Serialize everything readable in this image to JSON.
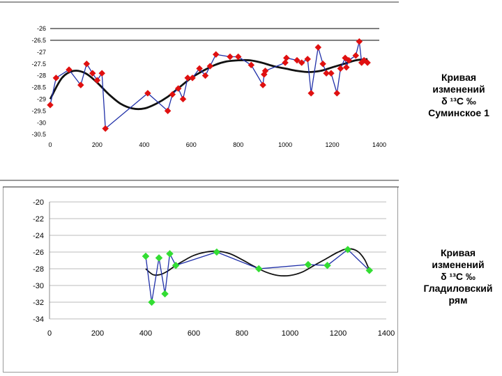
{
  "chart_data": [
    {
      "type": "line",
      "title": "",
      "caption_lines": [
        "Кривая",
        "изменений",
        "δ ¹³C ‰",
        "Суминское 1"
      ],
      "xlim": [
        0,
        1400
      ],
      "ylim": [
        -30.5,
        -26
      ],
      "xticks": [
        0,
        200,
        400,
        600,
        800,
        1000,
        1200,
        1400
      ],
      "xtick_labels": [
        "0",
        "200",
        "400",
        "600",
        "800",
        "1000",
        "1200",
        "1400"
      ],
      "yticks": [
        -26,
        -26.5,
        -27,
        -27.5,
        -28,
        -28.5,
        -29,
        -29.5,
        -30,
        -30.5
      ],
      "ytick_labels": [
        "-26",
        "-26.5",
        "-27",
        "-27.5",
        "-28",
        "-28.5",
        "-29",
        "-29.5",
        "-30",
        "-30.5"
      ],
      "gridlines_y": [
        -26,
        -26.5
      ],
      "series": [
        {
          "name": "measured",
          "color": "#1f2fa8",
          "marker_color": "#e01010",
          "x": [
            0,
            25,
            80,
            130,
            155,
            180,
            200,
            220,
            235,
            415,
            500,
            520,
            545,
            565,
            585,
            605,
            635,
            660,
            680,
            705,
            765,
            800,
            855,
            905,
            910,
            915,
            1000,
            1005,
            1050,
            1070,
            1095,
            1110,
            1140,
            1160,
            1175,
            1195,
            1220,
            1235,
            1255,
            1260,
            1270,
            1300,
            1315,
            1325,
            1335,
            1350
          ],
          "y": [
            -29.25,
            -28.1,
            -27.75,
            -28.4,
            -27.5,
            -27.9,
            -28.2,
            -27.9,
            -30.25,
            -28.75,
            -29.5,
            -28.8,
            -28.55,
            -29.0,
            -28.1,
            -28.1,
            -27.7,
            -28.0,
            -27.6,
            -27.1,
            -27.2,
            -27.2,
            -27.55,
            -28.4,
            -27.95,
            -27.8,
            -27.45,
            -27.25,
            -27.35,
            -27.45,
            -27.3,
            -28.75,
            -26.8,
            -27.5,
            -27.9,
            -27.9,
            -28.75,
            -27.7,
            -27.25,
            -27.65,
            -27.35,
            -27.15,
            -26.55,
            -27.45,
            -27.35,
            -27.45
          ]
        },
        {
          "name": "trend",
          "color": "#111111",
          "x": [
            0,
            50,
            100,
            150,
            200,
            250,
            300,
            350,
            400,
            450,
            500,
            550,
            600,
            650,
            700,
            750,
            800,
            850,
            900,
            950,
            1000,
            1050,
            1100,
            1150,
            1200,
            1250,
            1300,
            1350
          ],
          "y": [
            -29.0,
            -28.1,
            -27.8,
            -27.9,
            -28.3,
            -28.8,
            -29.2,
            -29.4,
            -29.4,
            -29.2,
            -28.9,
            -28.5,
            -28.1,
            -27.8,
            -27.55,
            -27.4,
            -27.35,
            -27.35,
            -27.45,
            -27.6,
            -27.7,
            -27.8,
            -27.85,
            -27.8,
            -27.65,
            -27.5,
            -27.35,
            -27.3
          ]
        }
      ]
    },
    {
      "type": "line",
      "title": "",
      "caption_lines": [
        "Кривая",
        "изменений",
        "δ ¹³C ‰",
        "Гладиловский",
        "рям"
      ],
      "xlim": [
        0,
        1400
      ],
      "ylim": [
        -34,
        -20
      ],
      "xticks": [
        0,
        200,
        400,
        600,
        800,
        1000,
        1200,
        1400
      ],
      "xtick_labels": [
        "0",
        "200",
        "400",
        "600",
        "800",
        "1000",
        "1200",
        "1400"
      ],
      "yticks": [
        -20,
        -22,
        -24,
        -26,
        -28,
        -30,
        -32,
        -34
      ],
      "ytick_labels": [
        "-20",
        "-22",
        "-24",
        "-26",
        "-28",
        "-30",
        "-32",
        "-34"
      ],
      "grid": true,
      "series": [
        {
          "name": "measured",
          "color": "#1f2fa8",
          "marker_color": "#33dd33",
          "x": [
            400,
            425,
            455,
            480,
            500,
            525,
            695,
            870,
            1075,
            1155,
            1240,
            1330
          ],
          "y": [
            -26.5,
            -32.0,
            -26.7,
            -31.0,
            -26.2,
            -27.6,
            -26.0,
            -28.0,
            -27.5,
            -27.6,
            -25.7,
            -28.2
          ],
          "point_labels": []
        },
        {
          "name": "trend",
          "color": "#111111",
          "x": [
            400,
            430,
            460,
            490,
            520,
            560,
            600,
            650,
            700,
            750,
            800,
            850,
            900,
            950,
            1000,
            1050,
            1100,
            1150,
            1200,
            1240,
            1280,
            1310,
            1330
          ],
          "y": [
            -28.0,
            -28.7,
            -28.7,
            -28.3,
            -27.7,
            -27.0,
            -26.4,
            -26.0,
            -25.9,
            -26.2,
            -26.9,
            -27.7,
            -28.4,
            -28.8,
            -28.8,
            -28.4,
            -27.6,
            -26.8,
            -26.0,
            -25.6,
            -25.9,
            -26.9,
            -28.2
          ]
        }
      ]
    }
  ]
}
